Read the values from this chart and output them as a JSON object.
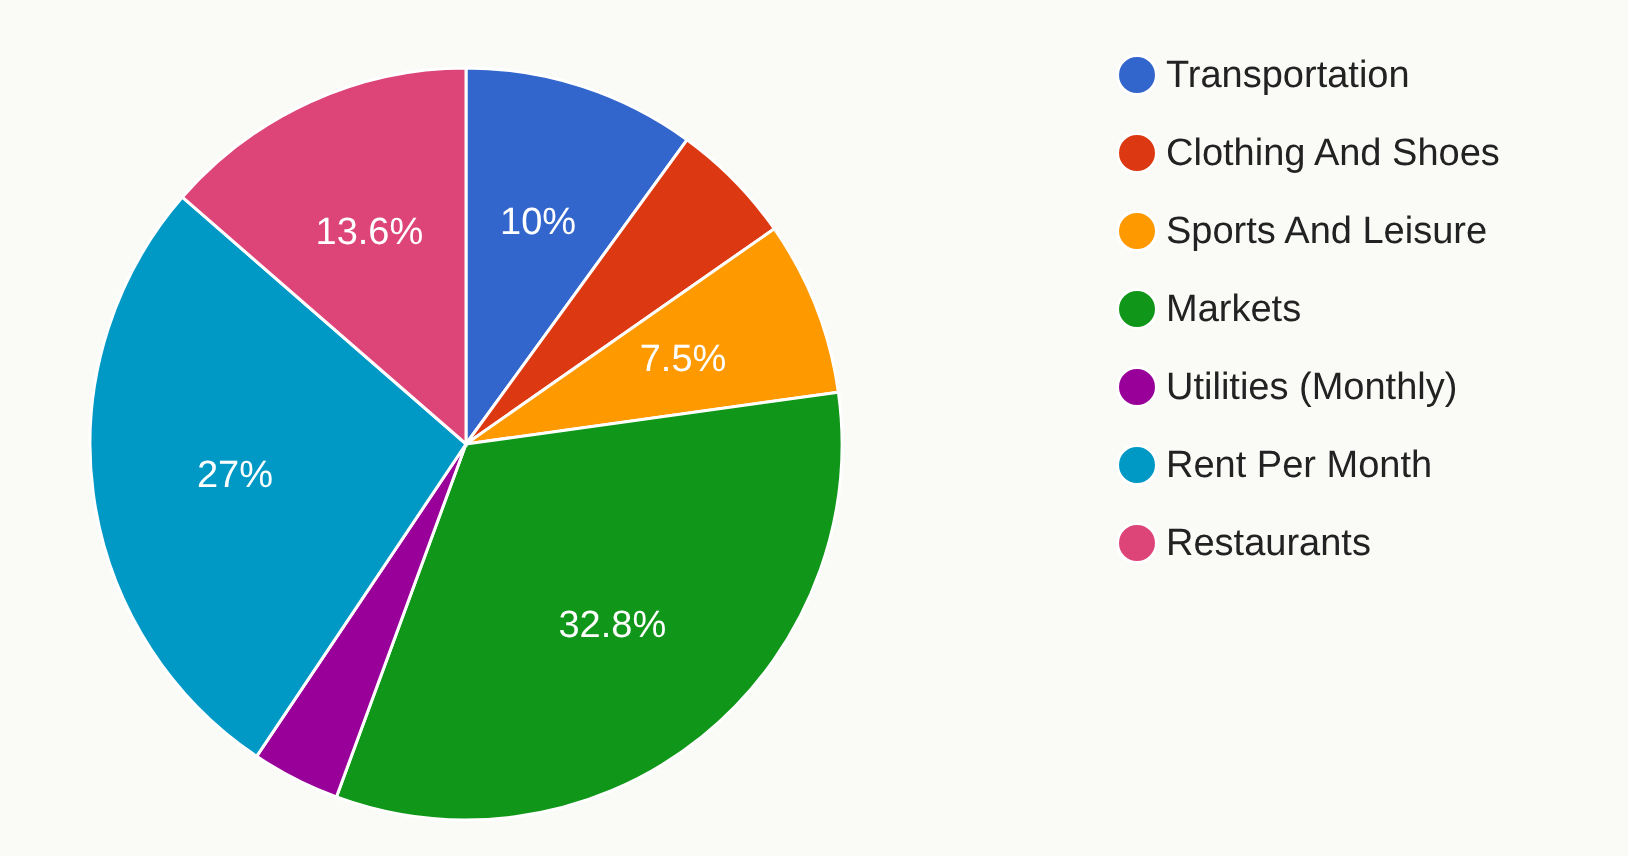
{
  "chart_data": {
    "type": "pie",
    "categories": [
      "Transportation",
      "Clothing And Shoes",
      "Sports And Leisure",
      "Markets",
      "Utilities (Monthly)",
      "Rent Per Month",
      "Restaurants"
    ],
    "values": [
      10,
      5.3,
      7.5,
      32.8,
      3.8,
      27,
      13.6
    ],
    "colors": [
      "#3366cc",
      "#dc3912",
      "#ff9900",
      "#109618",
      "#990099",
      "#0099c6",
      "#dd4477"
    ],
    "value_labels": [
      "10%",
      null,
      "7.5%",
      "32.8%",
      null,
      "27%",
      "13.6%"
    ],
    "legend": "right"
  }
}
